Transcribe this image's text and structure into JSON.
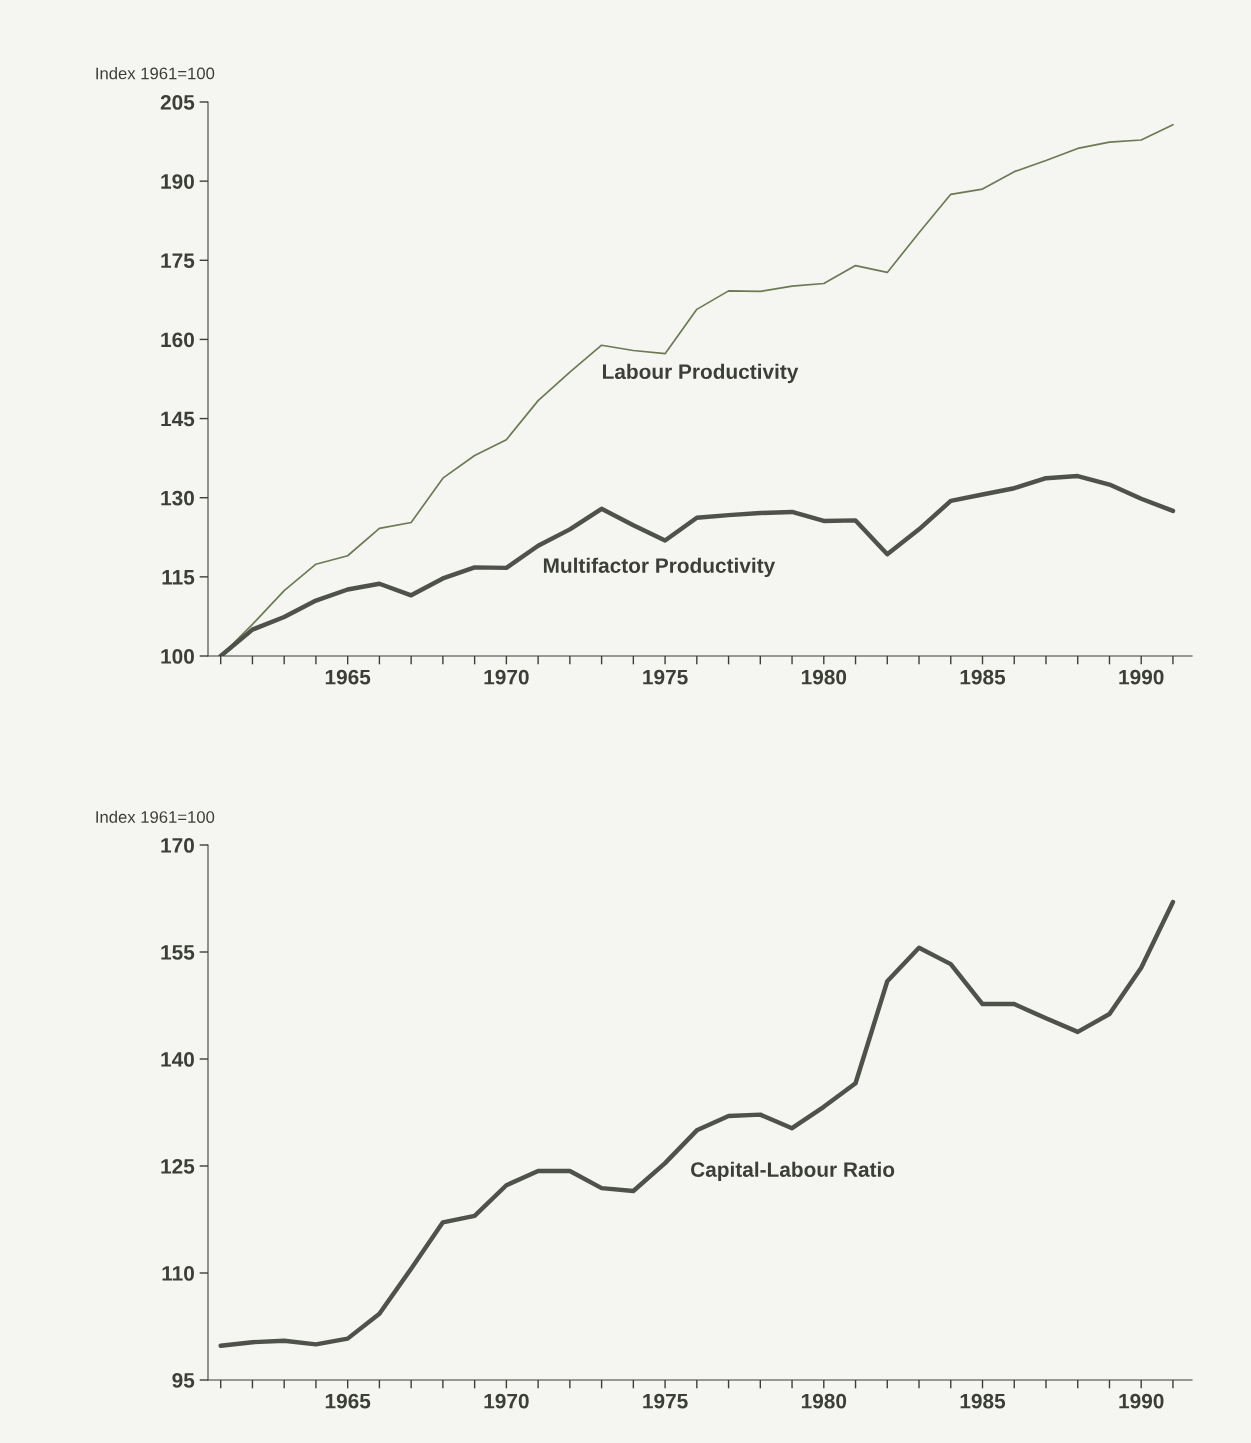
{
  "chart_data": [
    {
      "type": "line",
      "ylabel": "Index 1961=100",
      "x": [
        1961,
        1962,
        1963,
        1964,
        1965,
        1966,
        1967,
        1968,
        1969,
        1970,
        1971,
        1972,
        1973,
        1974,
        1975,
        1976,
        1977,
        1978,
        1979,
        1980,
        1981,
        1982,
        1983,
        1984,
        1985,
        1986,
        1987,
        1988,
        1989,
        1990,
        1991
      ],
      "series": [
        {
          "name": "Labour Productivity",
          "color": "#6b7a55",
          "values": [
            100,
            106,
            112.4,
            117.4,
            119,
            124.2,
            125.3,
            133.7,
            138,
            141,
            148.4,
            153.8,
            158.9,
            157.9,
            157.3,
            165.7,
            169.2,
            169.1,
            170.1,
            170.6,
            174,
            172.7,
            180.2,
            187.5,
            188.5,
            191.8,
            193.9,
            196.2,
            197.4,
            197.8,
            200.7
          ]
        },
        {
          "name": "Multifactor Productivity",
          "color": "#4f524a",
          "values": [
            100,
            105,
            107.4,
            110.5,
            112.6,
            113.7,
            111.5,
            114.7,
            116.8,
            116.7,
            120.9,
            124,
            127.9,
            124.8,
            121.9,
            126.2,
            126.7,
            127.1,
            127.3,
            125.6,
            125.7,
            119.3,
            124,
            129.4,
            130.6,
            131.8,
            133.7,
            134.1,
            132.5,
            129.8,
            127.5
          ]
        }
      ],
      "xlim": [
        1960.6,
        1991.6
      ],
      "ylim": [
        100,
        205
      ],
      "yticks": [
        100,
        115,
        130,
        145,
        160,
        175,
        190,
        205
      ],
      "xticks": [
        {
          "value": 1961,
          "label": null
        },
        {
          "value": 1962,
          "label": null
        },
        {
          "value": 1963,
          "label": null
        },
        {
          "value": 1964,
          "label": null
        },
        1965,
        {
          "value": 1966,
          "label": null
        },
        {
          "value": 1967,
          "label": null
        },
        {
          "value": 1968,
          "label": null
        },
        {
          "value": 1969,
          "label": null
        },
        1970,
        {
          "value": 1971,
          "label": null
        },
        {
          "value": 1972,
          "label": null
        },
        {
          "value": 1973,
          "label": null
        },
        {
          "value": 1974,
          "label": null
        },
        1975,
        {
          "value": 1976,
          "label": null
        },
        {
          "value": 1977,
          "label": null
        },
        {
          "value": 1978,
          "label": null
        },
        {
          "value": 1979,
          "label": null
        },
        1980,
        {
          "value": 1981,
          "label": null
        },
        {
          "value": 1982,
          "label": null
        },
        {
          "value": 1983,
          "label": null
        },
        {
          "value": 1984,
          "label": null
        },
        1985,
        {
          "value": 1986,
          "label": null
        },
        {
          "value": 1987,
          "label": null
        },
        {
          "value": 1988,
          "label": null
        },
        {
          "value": 1989,
          "label": null
        },
        1990,
        {
          "value": 1991,
          "label": null
        }
      ],
      "grid": false,
      "legend": false
    },
    {
      "type": "line",
      "ylabel": "Index 1961=100",
      "x": [
        1961,
        1962,
        1963,
        1964,
        1965,
        1966,
        1967,
        1968,
        1969,
        1970,
        1971,
        1972,
        1973,
        1974,
        1975,
        1976,
        1977,
        1978,
        1979,
        1980,
        1981,
        1982,
        1983,
        1984,
        1985,
        1986,
        1987,
        1988,
        1989,
        1990,
        1991
      ],
      "series": [
        {
          "name": "Capital-Labour Ratio",
          "color": "#4f524a",
          "values": [
            99.8,
            100.3,
            100.5,
            100,
            100.8,
            104.3,
            110.6,
            117.1,
            118,
            122.3,
            124.3,
            124.3,
            121.9,
            121.5,
            125.4,
            130,
            132,
            132.2,
            130.3,
            133.3,
            136.6,
            150.9,
            155.6,
            153.3,
            147.7,
            147.7,
            145.7,
            143.8,
            146.3,
            152.8,
            162
          ]
        }
      ],
      "xlim": [
        1960.6,
        1991.6
      ],
      "ylim": [
        95,
        170
      ],
      "yticks": [
        95,
        110,
        125,
        140,
        155,
        170
      ],
      "xticks": [
        {
          "value": 1961,
          "label": null
        },
        {
          "value": 1962,
          "label": null
        },
        {
          "value": 1963,
          "label": null
        },
        {
          "value": 1964,
          "label": null
        },
        1965,
        {
          "value": 1966,
          "label": null
        },
        {
          "value": 1967,
          "label": null
        },
        {
          "value": 1968,
          "label": null
        },
        {
          "value": 1969,
          "label": null
        },
        1970,
        {
          "value": 1971,
          "label": null
        },
        {
          "value": 1972,
          "label": null
        },
        {
          "value": 1973,
          "label": null
        },
        {
          "value": 1974,
          "label": null
        },
        1975,
        {
          "value": 1976,
          "label": null
        },
        {
          "value": 1977,
          "label": null
        },
        {
          "value": 1978,
          "label": null
        },
        {
          "value": 1979,
          "label": null
        },
        1980,
        {
          "value": 1981,
          "label": null
        },
        {
          "value": 1982,
          "label": null
        },
        {
          "value": 1983,
          "label": null
        },
        {
          "value": 1984,
          "label": null
        },
        1985,
        {
          "value": 1986,
          "label": null
        },
        {
          "value": 1987,
          "label": null
        },
        {
          "value": 1988,
          "label": null
        },
        {
          "value": 1989,
          "label": null
        },
        1990,
        {
          "value": 1991,
          "label": null
        }
      ],
      "grid": false,
      "legend": false
    }
  ]
}
